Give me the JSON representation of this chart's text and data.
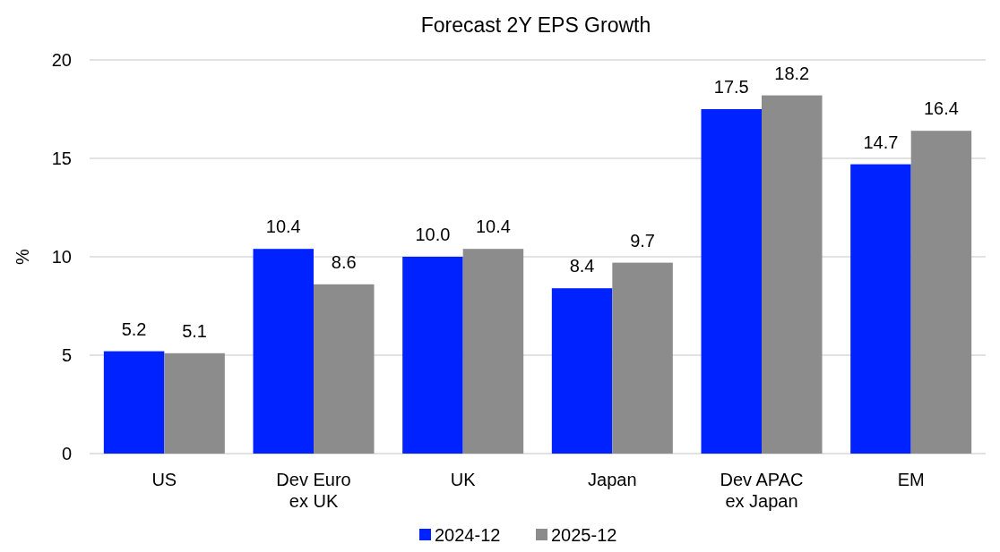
{
  "chart_data": {
    "type": "bar",
    "title": "Forecast 2Y EPS Growth",
    "ylabel": "%",
    "categories": [
      "US",
      "Dev Euro ex UK",
      "UK",
      "Japan",
      "Dev APAC ex Japan",
      "EM"
    ],
    "series": [
      {
        "name": "2024-12",
        "color": "#0022ff",
        "values": [
          5.2,
          10.4,
          10.0,
          8.4,
          17.5,
          14.7
        ],
        "value_labels": [
          "5.2",
          "10.4",
          "10.0",
          "8.4",
          "17.5",
          "14.7"
        ]
      },
      {
        "name": "2025-12",
        "color": "#8c8c8c",
        "values": [
          5.1,
          8.6,
          10.4,
          9.7,
          18.2,
          16.4
        ],
        "value_labels": [
          "5.1",
          "8.6",
          "10.4",
          "9.7",
          "18.2",
          "16.4"
        ]
      }
    ],
    "ylim": [
      0,
      20
    ],
    "yticks": [
      0,
      5,
      10,
      15,
      20
    ],
    "grid": "y",
    "legend": "bottom"
  }
}
